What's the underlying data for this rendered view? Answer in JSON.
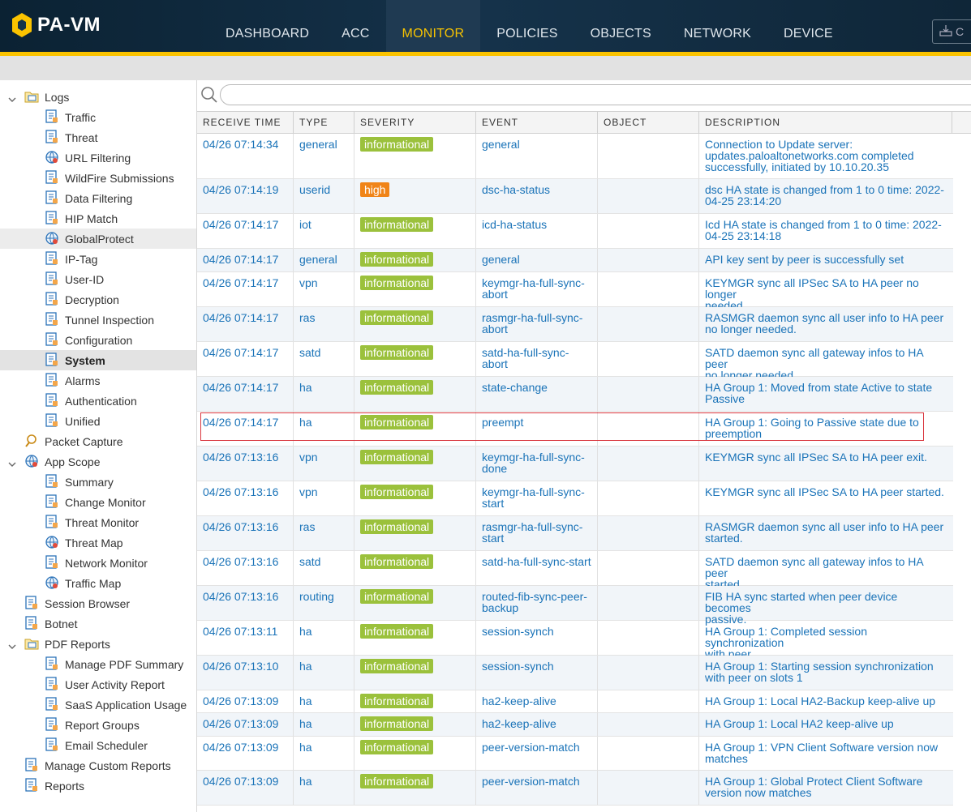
{
  "app": {
    "logo_text": "PA-VM",
    "commit_label": "C"
  },
  "nav": [
    {
      "label": "DASHBOARD",
      "active": false
    },
    {
      "label": "ACC",
      "active": false
    },
    {
      "label": "MONITOR",
      "active": true
    },
    {
      "label": "POLICIES",
      "active": false
    },
    {
      "label": "OBJECTS",
      "active": false
    },
    {
      "label": "NETWORK",
      "active": false
    },
    {
      "label": "DEVICE",
      "active": false
    }
  ],
  "sidebar": [
    {
      "label": "Logs",
      "level": 0,
      "caret": "open",
      "icon": "logs-folder-icon"
    },
    {
      "label": "Traffic",
      "level": 1,
      "icon": "traffic-log-icon"
    },
    {
      "label": "Threat",
      "level": 1,
      "icon": "threat-log-icon"
    },
    {
      "label": "URL Filtering",
      "level": 1,
      "icon": "url-filtering-icon"
    },
    {
      "label": "WildFire Submissions",
      "level": 1,
      "icon": "wildfire-icon"
    },
    {
      "label": "Data Filtering",
      "level": 1,
      "icon": "data-filtering-icon"
    },
    {
      "label": "HIP Match",
      "level": 1,
      "icon": "hip-match-icon"
    },
    {
      "label": "GlobalProtect",
      "level": 1,
      "icon": "globalprotect-icon",
      "hover": true
    },
    {
      "label": "IP-Tag",
      "level": 1,
      "icon": "ip-tag-icon"
    },
    {
      "label": "User-ID",
      "level": 1,
      "icon": "user-id-icon"
    },
    {
      "label": "Decryption",
      "level": 1,
      "icon": "decryption-icon"
    },
    {
      "label": "Tunnel Inspection",
      "level": 1,
      "icon": "tunnel-inspection-icon"
    },
    {
      "label": "Configuration",
      "level": 1,
      "icon": "configuration-icon"
    },
    {
      "label": "System",
      "level": 1,
      "icon": "system-log-icon",
      "selected": true
    },
    {
      "label": "Alarms",
      "level": 1,
      "icon": "alarms-icon"
    },
    {
      "label": "Authentication",
      "level": 1,
      "icon": "authentication-icon"
    },
    {
      "label": "Unified",
      "level": 1,
      "icon": "unified-icon"
    },
    {
      "label": "Packet Capture",
      "level": 0,
      "icon": "packet-capture-icon"
    },
    {
      "label": "App Scope",
      "level": 0,
      "caret": "open",
      "icon": "app-scope-icon"
    },
    {
      "label": "Summary",
      "level": 1,
      "icon": "summary-icon"
    },
    {
      "label": "Change Monitor",
      "level": 1,
      "icon": "change-monitor-icon"
    },
    {
      "label": "Threat Monitor",
      "level": 1,
      "icon": "threat-monitor-icon"
    },
    {
      "label": "Threat Map",
      "level": 1,
      "icon": "threat-map-icon"
    },
    {
      "label": "Network Monitor",
      "level": 1,
      "icon": "network-monitor-icon"
    },
    {
      "label": "Traffic Map",
      "level": 1,
      "icon": "traffic-map-icon"
    },
    {
      "label": "Session Browser",
      "level": 0,
      "icon": "session-browser-icon"
    },
    {
      "label": "Botnet",
      "level": 0,
      "icon": "botnet-icon"
    },
    {
      "label": "PDF Reports",
      "level": 0,
      "caret": "open",
      "icon": "pdf-reports-icon"
    },
    {
      "label": "Manage PDF Summary",
      "level": 1,
      "icon": "pdf-summary-icon"
    },
    {
      "label": "User Activity Report",
      "level": 1,
      "icon": "user-activity-icon"
    },
    {
      "label": "SaaS Application Usage",
      "level": 1,
      "icon": "saas-usage-icon"
    },
    {
      "label": "Report Groups",
      "level": 1,
      "icon": "report-groups-icon"
    },
    {
      "label": "Email Scheduler",
      "level": 1,
      "icon": "email-scheduler-icon"
    },
    {
      "label": "Manage Custom Reports",
      "level": 0,
      "icon": "custom-reports-icon"
    },
    {
      "label": "Reports",
      "level": 0,
      "icon": "reports-icon"
    }
  ],
  "search": {
    "placeholder": ""
  },
  "table": {
    "columns": [
      "RECEIVE TIME",
      "TYPE",
      "SEVERITY",
      "EVENT",
      "OBJECT",
      "DESCRIPTION"
    ],
    "rows": [
      {
        "time": "04/26 07:14:34",
        "type": "general",
        "severity": "informational",
        "event": [
          "general"
        ],
        "object": "",
        "desc": [
          "Connection to Update server:",
          "updates.paloaltonetworks.com completed",
          "successfully, initiated by 10.10.20.35"
        ]
      },
      {
        "time": "04/26 07:14:19",
        "type": "userid",
        "severity": "high",
        "event": [
          "dsc-ha-status"
        ],
        "object": "",
        "desc": [
          "dsc HA state is changed from 1 to 0 time: 2022-",
          "04-25 23:14:20"
        ]
      },
      {
        "time": "04/26 07:14:17",
        "type": "iot",
        "severity": "informational",
        "event": [
          "icd-ha-status"
        ],
        "object": "",
        "desc": [
          "Icd HA state is changed from 1 to 0 time: 2022-",
          "04-25 23:14:18"
        ]
      },
      {
        "time": "04/26 07:14:17",
        "type": "general",
        "severity": "informational",
        "event": [
          "general"
        ],
        "object": "",
        "desc": [
          "API key sent by peer is successfully set"
        ]
      },
      {
        "time": "04/26 07:14:17",
        "type": "vpn",
        "severity": "informational",
        "event": [
          "keymgr-ha-full-sync-",
          "abort"
        ],
        "object": "",
        "desc": [
          "KEYMGR sync all IPSec SA to HA peer no longer",
          "needed."
        ]
      },
      {
        "time": "04/26 07:14:17",
        "type": "ras",
        "severity": "informational",
        "event": [
          "rasmgr-ha-full-sync-",
          "abort"
        ],
        "object": "",
        "desc": [
          "RASMGR daemon sync all user info to HA peer",
          "no longer needed."
        ]
      },
      {
        "time": "04/26 07:14:17",
        "type": "satd",
        "severity": "informational",
        "event": [
          "satd-ha-full-sync-",
          "abort"
        ],
        "object": "",
        "desc": [
          "SATD daemon sync all gateway infos to HA peer",
          "no longer needed."
        ]
      },
      {
        "time": "04/26 07:14:17",
        "type": "ha",
        "severity": "informational",
        "event": [
          "state-change"
        ],
        "object": "",
        "desc": [
          "HA Group 1: Moved from state Active to state",
          "Passive"
        ]
      },
      {
        "time": "04/26 07:14:17",
        "type": "ha",
        "severity": "informational",
        "event": [
          "preempt"
        ],
        "object": "",
        "desc": [
          "HA Group 1: Going to Passive state due to",
          "preemption"
        ],
        "highlight": true
      },
      {
        "time": "04/26 07:13:16",
        "type": "vpn",
        "severity": "informational",
        "event": [
          "keymgr-ha-full-sync-",
          "done"
        ],
        "object": "",
        "desc": [
          "KEYMGR sync all IPSec SA to HA peer exit."
        ]
      },
      {
        "time": "04/26 07:13:16",
        "type": "vpn",
        "severity": "informational",
        "event": [
          "keymgr-ha-full-sync-",
          "start"
        ],
        "object": "",
        "desc": [
          "KEYMGR sync all IPSec SA to HA peer started."
        ]
      },
      {
        "time": "04/26 07:13:16",
        "type": "ras",
        "severity": "informational",
        "event": [
          "rasmgr-ha-full-sync-",
          "start"
        ],
        "object": "",
        "desc": [
          "RASMGR daemon sync all user info to HA peer",
          "started."
        ]
      },
      {
        "time": "04/26 07:13:16",
        "type": "satd",
        "severity": "informational",
        "event": [
          "satd-ha-full-sync-start"
        ],
        "object": "",
        "desc": [
          "SATD daemon sync all gateway infos to HA peer",
          "started."
        ]
      },
      {
        "time": "04/26 07:13:16",
        "type": "routing",
        "severity": "informational",
        "event": [
          "routed-fib-sync-peer-",
          "backup"
        ],
        "object": "",
        "desc": [
          "FIB HA sync started when peer device becomes",
          "passive."
        ]
      },
      {
        "time": "04/26 07:13:11",
        "type": "ha",
        "severity": "informational",
        "event": [
          "session-synch"
        ],
        "object": "",
        "desc": [
          "HA Group 1: Completed session synchronization",
          "with peer"
        ]
      },
      {
        "time": "04/26 07:13:10",
        "type": "ha",
        "severity": "informational",
        "event": [
          "session-synch"
        ],
        "object": "",
        "desc": [
          "HA Group 1: Starting session synchronization",
          "with peer on slots 1"
        ]
      },
      {
        "time": "04/26 07:13:09",
        "type": "ha",
        "severity": "informational",
        "event": [
          "ha2-keep-alive"
        ],
        "object": "",
        "desc": [
          "HA Group 1: Local HA2-Backup keep-alive up"
        ]
      },
      {
        "time": "04/26 07:13:09",
        "type": "ha",
        "severity": "informational",
        "event": [
          "ha2-keep-alive"
        ],
        "object": "",
        "desc": [
          "HA Group 1: Local HA2 keep-alive up"
        ]
      },
      {
        "time": "04/26 07:13:09",
        "type": "ha",
        "severity": "informational",
        "event": [
          "peer-version-match"
        ],
        "object": "",
        "desc": [
          "HA Group 1: VPN Client Software version now",
          "matches"
        ]
      },
      {
        "time": "04/26 07:13:09",
        "type": "ha",
        "severity": "informational",
        "event": [
          "peer-version-match"
        ],
        "object": "",
        "desc": [
          "HA Group 1: Global Protect Client Software",
          "version now matches"
        ]
      }
    ]
  },
  "colors": {
    "accent": "#fbc300",
    "link": "#1a73b8",
    "informational": "#9bc13c",
    "high": "#f08418",
    "highlight_border": "#d9363e"
  }
}
